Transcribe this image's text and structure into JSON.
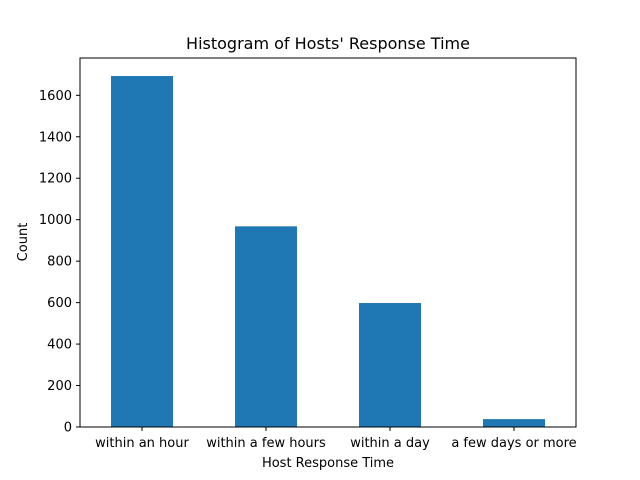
{
  "colors": {
    "bar": "#1f77b4",
    "axis": "#000000",
    "background": "#ffffff"
  },
  "chart_data": {
    "type": "bar",
    "title": "Histogram of Hosts' Response Time",
    "xlabel": "Host Response Time",
    "ylabel": "Count",
    "categories": [
      "within an hour",
      "within a few hours",
      "within a day",
      "a few days or more"
    ],
    "values": [
      1693,
      968,
      598,
      38
    ],
    "ylim": [
      0,
      1780
    ],
    "yticks": [
      0,
      200,
      400,
      600,
      800,
      1000,
      1200,
      1400,
      1600
    ],
    "grid": false,
    "legend": "none"
  }
}
